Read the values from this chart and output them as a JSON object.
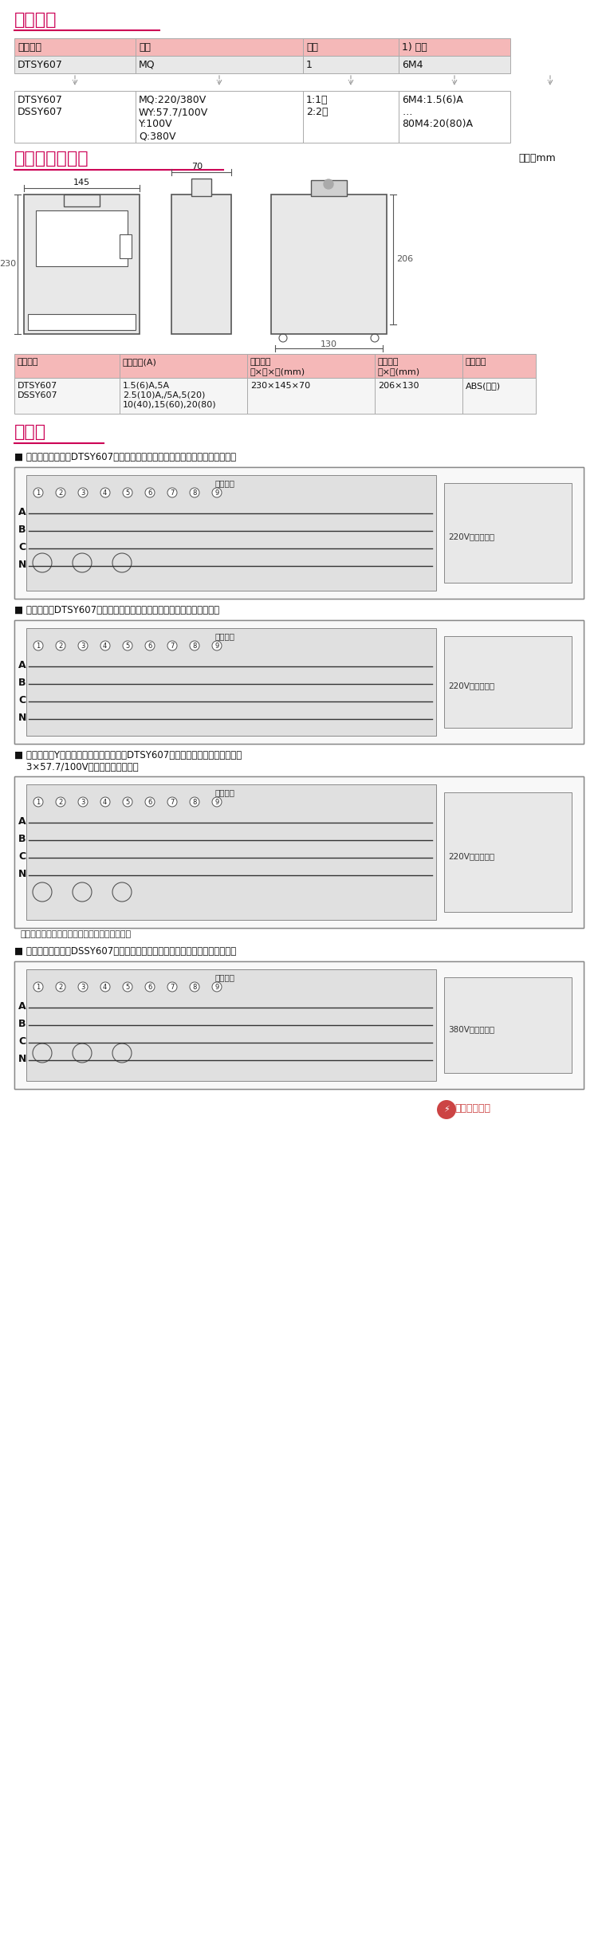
{
  "title": "选型指南",
  "section2_title": "外形及安装尺寸",
  "section2_unit": "单位：mm",
  "section3_title": "接线图",
  "table1_headers": [
    "产品名称",
    "电压",
    "等级",
    "1) 规格"
  ],
  "table1_row1": [
    "DTSY607",
    "MQ",
    "1",
    "6M4"
  ],
  "table1_row2_col1": "DTSY607\nDSSY607",
  "table1_row2_col2": "MQ:220/380V\nWY:57.7/100V\nY:100V\nQ:380V",
  "table1_row2_col3": "1:1级\n2:2级",
  "table1_row2_col4": "6M4:1.5(6)A\n…\n80M4:20(80)A",
  "table2_headers": [
    "产品名称",
    "电流规格(A)",
    "外形尺寸\n长×宽×高(mm)",
    "安装尺寸\n长×宽(mm)",
    "外壳材质"
  ],
  "table2_row1_col1": "DTSY607\nDSSY607",
  "table2_row1_col2": "1.5(6)A,5A\n2.5(10)A,/5A,5(20)\n10(40),15(60),20(80)",
  "table2_row1_col3": "230×145×70",
  "table2_row1_col4": "206×130",
  "table2_row1_col5": "ABS(阻燃)",
  "wiring_labels": [
    "■ 电流互感器接入式DTSY607型三相四线电子式预付费能表外接断电装置接线图",
    "■ 直接接入式DTSY607型三相四线电子式预付费能表外接断电装置接线图",
    "■ 电流互感器Y型接法、电流互感器接入式DTSY607型三相四线电子式预付费能表\n    3×57.7/100V外接断电装置接线图",
    "■ 电流互感器接入式DSSY607型三相三线电子式预付费能表外接断电装置接线图"
  ],
  "header_bg": "#f5b8b8",
  "header_bg2": "#d8d8d8",
  "row_bg": "#e8e8e8",
  "title_color": "#cc0055",
  "border_color": "#aaaaaa",
  "text_color": "#111111",
  "wiring_bg": "#f0f0f0",
  "wiring_border": "#aaaaaa",
  "diagram_bg": "#e8e8e8"
}
